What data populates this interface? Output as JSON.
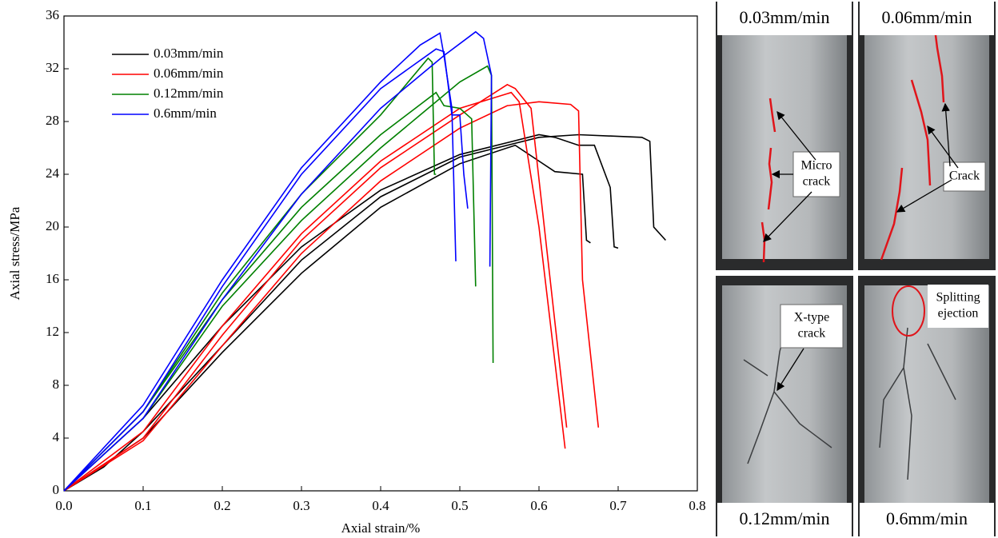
{
  "chart_data": {
    "type": "line",
    "x_label": "Axial strain/%",
    "y_label": "Axial stress/MPa",
    "xlim": [
      0,
      0.8
    ],
    "ylim": [
      0,
      36
    ],
    "xticks": [
      {
        "value": 0,
        "label": "0.0"
      },
      0.1,
      0.2,
      0.3,
      0.4,
      0.5,
      0.6,
      0.7,
      0.8
    ],
    "yticks": [
      0,
      4,
      8,
      12,
      16,
      20,
      24,
      28,
      32,
      36
    ],
    "grid": false,
    "legend": "upper left",
    "series": [
      {
        "name": "0.03mm/min",
        "color": "#000000",
        "curves": [
          {
            "x": [
              0,
              0.05,
              0.1,
              0.2,
              0.3,
              0.4,
              0.5,
              0.6,
              0.65,
              0.73,
              0.74,
              0.745,
              0.76
            ],
            "values": [
              0,
              1.8,
              4.5,
              11,
              17.5,
              22.3,
              25.3,
              26.8,
              27,
              26.8,
              26.5,
              20,
              19
            ]
          },
          {
            "x": [
              0,
              0.1,
              0.2,
              0.3,
              0.4,
              0.5,
              0.6,
              0.62,
              0.65,
              0.67,
              0.69,
              0.695,
              0.7
            ],
            "values": [
              0,
              5.5,
              12.5,
              18.5,
              22.8,
              25.5,
              27,
              26.8,
              26.2,
              26.2,
              23,
              18.5,
              18.4
            ]
          },
          {
            "x": [
              0,
              0.1,
              0.2,
              0.3,
              0.4,
              0.5,
              0.57,
              0.6,
              0.62,
              0.655,
              0.66,
              0.665
            ],
            "values": [
              0,
              4,
              10.5,
              16.5,
              21.5,
              24.8,
              26.2,
              25,
              24.2,
              24,
              19,
              18.8
            ]
          }
        ]
      },
      {
        "name": "0.06mm/min",
        "color": "#ff0000",
        "curves": [
          {
            "x": [
              0,
              0.1,
              0.2,
              0.3,
              0.4,
              0.5,
              0.56,
              0.6,
              0.64,
              0.65,
              0.655,
              0.675
            ],
            "values": [
              0,
              3.8,
              11,
              18,
              23.5,
              27.5,
              29.2,
              29.5,
              29.3,
              28.8,
              16,
              4.8
            ]
          },
          {
            "x": [
              0,
              0.1,
              0.2,
              0.3,
              0.4,
              0.5,
              0.56,
              0.57,
              0.59,
              0.635
            ],
            "values": [
              0,
              4,
              11.8,
              19,
              24.5,
              28.5,
              30.8,
              30.5,
              29,
              4.8
            ]
          },
          {
            "x": [
              0,
              0.1,
              0.2,
              0.3,
              0.4,
              0.5,
              0.565,
              0.575,
              0.6,
              0.633
            ],
            "values": [
              0,
              4.5,
              12.5,
              19.5,
              25,
              29,
              30.2,
              29.5,
              20,
              3.2
            ]
          }
        ]
      },
      {
        "name": "0.12mm/min",
        "color": "#008000",
        "curves": [
          {
            "x": [
              0,
              0.1,
              0.2,
              0.3,
              0.4,
              0.46,
              0.465,
              0.468,
              0.47
            ],
            "values": [
              0,
              6,
              15,
              22.5,
              28.5,
              32.8,
              32.5,
              24,
              24
            ]
          },
          {
            "x": [
              0,
              0.1,
              0.2,
              0.3,
              0.4,
              0.47,
              0.48,
              0.5,
              0.515,
              0.52
            ],
            "values": [
              0,
              6,
              14.5,
              21.5,
              27,
              30.2,
              29.2,
              29,
              28.2,
              15.5
            ]
          },
          {
            "x": [
              0,
              0.1,
              0.2,
              0.3,
              0.4,
              0.45,
              0.5,
              0.535,
              0.54,
              0.542
            ],
            "values": [
              0,
              5.5,
              14,
              20.5,
              26,
              28.5,
              31,
              32.2,
              31.5,
              9.7
            ]
          }
        ]
      },
      {
        "name": "0.6mm/min",
        "color": "#0000ff",
        "curves": [
          {
            "x": [
              0,
              0.1,
              0.2,
              0.3,
              0.4,
              0.45,
              0.475,
              0.48,
              0.49,
              0.495
            ],
            "values": [
              0,
              6.5,
              16,
              24.5,
              31,
              33.8,
              34.7,
              33,
              29,
              17.4
            ]
          },
          {
            "x": [
              0,
              0.1,
              0.2,
              0.3,
              0.4,
              0.47,
              0.48,
              0.49,
              0.5,
              0.505,
              0.51
            ],
            "values": [
              0,
              6,
              15.5,
              24,
              30.5,
              33.5,
              33.3,
              28.5,
              28.5,
              24,
              21.4
            ]
          },
          {
            "x": [
              0,
              0.1,
              0.2,
              0.3,
              0.4,
              0.48,
              0.52,
              0.53,
              0.54,
              0.538
            ],
            "values": [
              0,
              5.5,
              14.5,
              22.5,
              29,
              33,
              34.8,
              34.3,
              31.5,
              17
            ]
          }
        ]
      }
    ]
  },
  "panels": [
    {
      "label": "0.03mm/min",
      "note": [
        "Micro",
        "crack"
      ]
    },
    {
      "label": "0.06mm/min",
      "note": [
        "Crack"
      ]
    },
    {
      "label": "0.12mm/min",
      "note": [
        "X-type",
        "crack"
      ]
    },
    {
      "label": "0.6mm/min",
      "note": [
        "Splitting",
        "ejection"
      ]
    }
  ]
}
